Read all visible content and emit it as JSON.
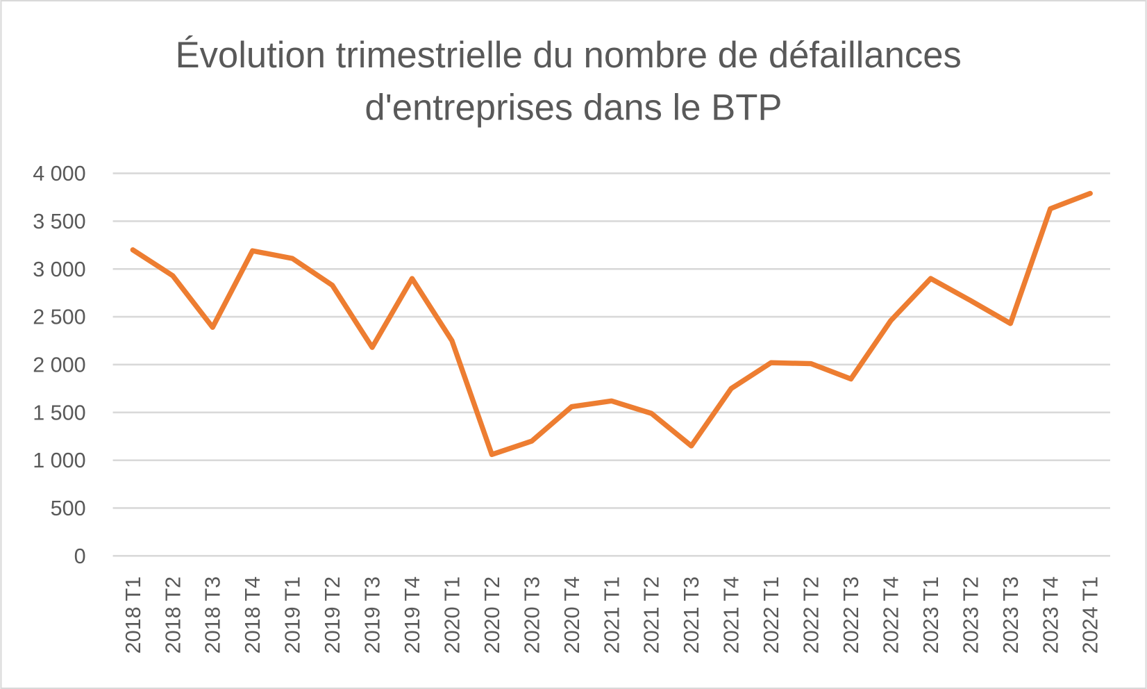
{
  "chart_data": {
    "type": "line",
    "title": [
      "Évolution trimestrielle du nombre de défaillances",
      "d'entreprises dans le BTP"
    ],
    "xlabel": "",
    "ylabel": "",
    "ylim": [
      0,
      4000
    ],
    "yticks": [
      0,
      500,
      1000,
      1500,
      2000,
      2500,
      3000,
      3500,
      4000
    ],
    "ytick_labels": [
      "0",
      "500",
      "1 000",
      "1 500",
      "2 000",
      "2 500",
      "3 000",
      "3 500",
      "4 000"
    ],
    "grid": true,
    "legend": "none",
    "categories": [
      "2018 T1",
      "2018 T2",
      "2018 T3",
      "2018 T4",
      "2019 T1",
      "2019 T2",
      "2019 T3",
      "2019 T4",
      "2020 T1",
      "2020 T2",
      "2020 T3",
      "2020 T4",
      "2021 T1",
      "2021 T2",
      "2021 T3",
      "2021 T4",
      "2022 T1",
      "2022 T2",
      "2022 T3",
      "2022 T4",
      "2023 T1",
      "2023 T2",
      "2023 T3",
      "2023 T4",
      "2024 T1"
    ],
    "series": [
      {
        "color": "#ED7D31",
        "values": [
          3200,
          2930,
          2390,
          3190,
          3110,
          2830,
          2180,
          2900,
          2250,
          1060,
          1200,
          1560,
          1620,
          1490,
          1150,
          1750,
          2020,
          2010,
          1850,
          2460,
          2900,
          2670,
          2430,
          3630,
          3790
        ]
      }
    ],
    "colors": {
      "gridline": "#D9D9D9",
      "text": "#595959",
      "border": "#D9D9D9"
    }
  }
}
